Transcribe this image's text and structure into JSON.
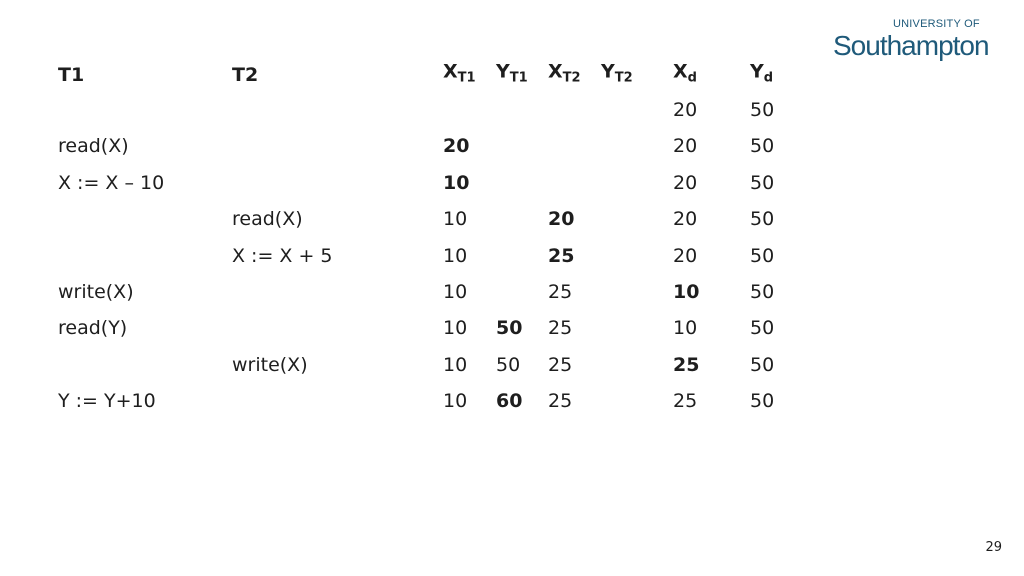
{
  "logo": {
    "line1": "UNIVERSITY OF",
    "line2": "Southampton",
    "color": "#1f5a7a"
  },
  "headers": [
    {
      "key": "t1",
      "main": "T1",
      "sub": ""
    },
    {
      "key": "t2",
      "main": "T2",
      "sub": ""
    },
    {
      "key": "xt1",
      "main": "X",
      "sub": "T1"
    },
    {
      "key": "yt1",
      "main": "Y",
      "sub": "T1"
    },
    {
      "key": "xt2",
      "main": "X",
      "sub": "T2"
    },
    {
      "key": "yt2",
      "main": "Y",
      "sub": "T2"
    },
    {
      "key": "xd",
      "main": "X",
      "sub": "d"
    },
    {
      "key": "yd",
      "main": "Y",
      "sub": "d"
    }
  ],
  "rows": [
    {
      "t1": "",
      "t2": "",
      "xt1": "",
      "yt1": "",
      "xt2": "",
      "yt2": "",
      "xd": "20",
      "yd": "50",
      "bold": []
    },
    {
      "t1": "read(X)",
      "t2": "",
      "xt1": "20",
      "yt1": "",
      "xt2": "",
      "yt2": "",
      "xd": "20",
      "yd": "50",
      "bold": [
        "xt1"
      ]
    },
    {
      "t1": "X := X – 10",
      "t2": "",
      "xt1": "10",
      "yt1": "",
      "xt2": "",
      "yt2": "",
      "xd": "20",
      "yd": "50",
      "bold": [
        "xt1"
      ]
    },
    {
      "t1": "",
      "t2": "read(X)",
      "xt1": "10",
      "yt1": "",
      "xt2": "20",
      "yt2": "",
      "xd": "20",
      "yd": "50",
      "bold": [
        "xt2"
      ]
    },
    {
      "t1": "",
      "t2": "X := X + 5",
      "xt1": "10",
      "yt1": "",
      "xt2": "25",
      "yt2": "",
      "xd": "20",
      "yd": "50",
      "bold": [
        "xt2"
      ]
    },
    {
      "t1": "write(X)",
      "t2": "",
      "xt1": "10",
      "yt1": "",
      "xt2": "25",
      "yt2": "",
      "xd": "10",
      "yd": "50",
      "bold": [
        "xd"
      ]
    },
    {
      "t1": "read(Y)",
      "t2": "",
      "xt1": "10",
      "yt1": "50",
      "xt2": "25",
      "yt2": "",
      "xd": "10",
      "yd": "50",
      "bold": [
        "yt1"
      ]
    },
    {
      "t1": "",
      "t2": "write(X)",
      "xt1": "10",
      "yt1": "50",
      "xt2": "25",
      "yt2": "",
      "xd": "25",
      "yd": "50",
      "bold": [
        "xd"
      ]
    },
    {
      "t1": "Y := Y+10",
      "t2": "",
      "xt1": "10",
      "yt1": "60",
      "xt2": "25",
      "yt2": "",
      "xd": "25",
      "yd": "50",
      "bold": [
        "yt1"
      ]
    }
  ],
  "page_number": "29"
}
